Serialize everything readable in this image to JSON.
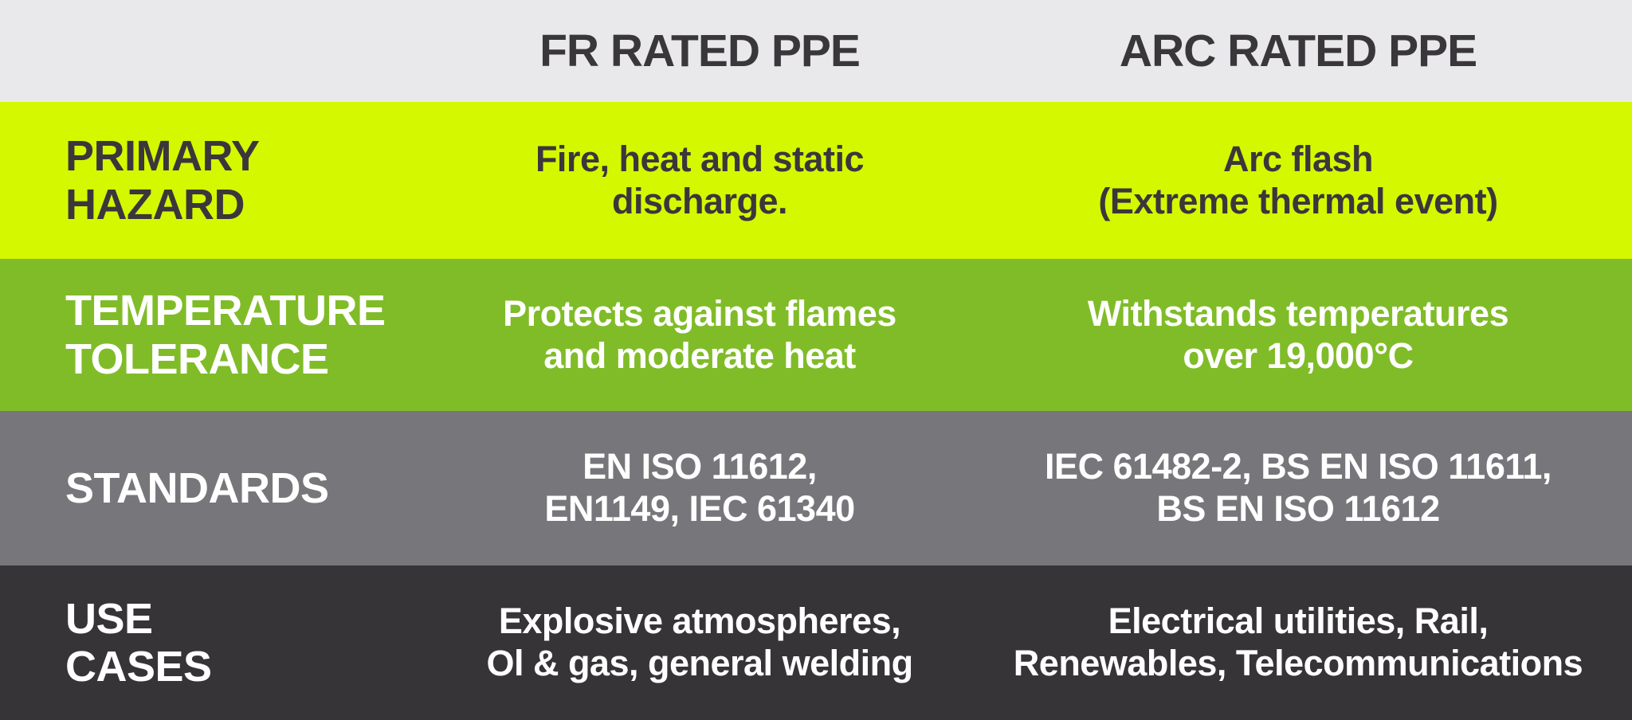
{
  "header": {
    "corner_label": "",
    "fr_label": "FR RATED PPE",
    "arc_label": "ARC RATED PPE"
  },
  "rows": [
    {
      "label": "PRIMARY\nHAZARD",
      "fr": "Fire, heat and static\ndischarge.",
      "arc": "Arc flash\n(Extreme thermal event)"
    },
    {
      "label": "TEMPERATURE\nTOLERANCE",
      "fr": "Protects against flames\nand moderate heat",
      "arc": "Withstands temperatures\nover 19,000°C"
    },
    {
      "label": "STANDARDS",
      "fr": "EN ISO 11612,\nEN1149, IEC 61340",
      "arc": "IEC 61482-2, BS EN ISO 11611,\nBS EN ISO 11612"
    },
    {
      "label": "USE\nCASES",
      "fr": "Explosive atmospheres,\nOl & gas, general welding",
      "arc": "Electrical utilities, Rail,\nRenewables, Telecommunications"
    }
  ],
  "colors": {
    "header_bg": "#e9e9eb",
    "header_text": "#3a373b",
    "row1_bg": "#d4f800",
    "row1_text": "#3a373b",
    "row2_bg": "#80bc28",
    "row2_text": "#ffffff",
    "row3_bg": "#77777b",
    "row3_text": "#ffffff",
    "row4_bg": "#373437",
    "row4_text": "#ffffff"
  },
  "chart_data": {
    "type": "table",
    "title": "FR Rated PPE vs Arc Rated PPE comparison",
    "columns": [
      "",
      "FR RATED PPE",
      "ARC RATED PPE"
    ],
    "rows": [
      [
        "PRIMARY HAZARD",
        "Fire, heat and static discharge.",
        "Arc flash (Extreme thermal event)"
      ],
      [
        "TEMPERATURE TOLERANCE",
        "Protects against flames and moderate heat",
        "Withstands temperatures over 19,000°C"
      ],
      [
        "STANDARDS",
        "EN ISO 11612, EN1149, IEC 61340",
        "IEC 61482-2, BS EN ISO 11611, BS EN ISO 11612"
      ],
      [
        "USE CASES",
        "Explosive atmospheres, Ol & gas, general welding",
        "Electrical utilities, Rail, Renewables, Telecommunications"
      ]
    ],
    "row_colors": [
      "#d4f800",
      "#80bc28",
      "#77777b",
      "#373437"
    ]
  }
}
